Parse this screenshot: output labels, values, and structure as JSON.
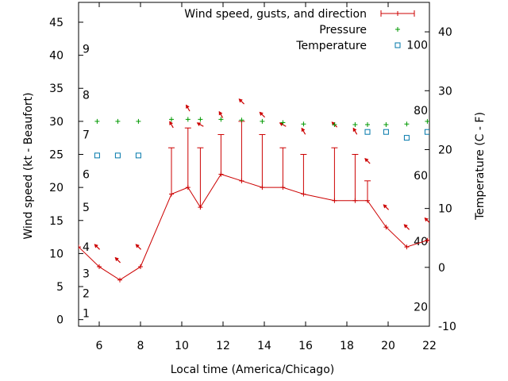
{
  "chart_data": {
    "type": "line",
    "xlabel": "Local time (America/Chicago)",
    "ylabel": "Wind speed (kt - Beaufort)",
    "y2label": "Temperature (C - F)",
    "xlim": [
      5,
      22
    ],
    "ylim": [
      -1,
      48
    ],
    "y2lim": [
      -10,
      45
    ],
    "x_ticks": [
      6,
      8,
      10,
      12,
      14,
      16,
      18,
      20,
      22
    ],
    "y_ticks": [
      0,
      5,
      10,
      15,
      20,
      25,
      30,
      35,
      40,
      45
    ],
    "y2_ticks": [
      -10,
      0,
      10,
      20,
      30,
      40
    ],
    "beaufort_labels": [
      {
        "text": "1",
        "y": 1
      },
      {
        "text": "2",
        "y": 4
      },
      {
        "text": "3",
        "y": 7
      },
      {
        "text": "4",
        "y": 11
      },
      {
        "text": "5",
        "y": 17
      },
      {
        "text": "6",
        "y": 22
      },
      {
        "text": "7",
        "y": 28
      },
      {
        "text": "8",
        "y": 34
      },
      {
        "text": "9",
        "y": 41
      }
    ],
    "fahrenheit_labels": [
      {
        "text": "20",
        "y2": -6.7
      },
      {
        "text": "40",
        "y2": 4.4
      },
      {
        "text": "60",
        "y2": 15.6
      },
      {
        "text": "80",
        "y2": 26.7
      },
      {
        "text": "100",
        "y2": 37.8
      }
    ],
    "legend": [
      {
        "label": "Wind speed, gusts, and direction",
        "marker": "line-plus"
      },
      {
        "label": "Pressure",
        "marker": "plus"
      },
      {
        "label": "Temperature",
        "marker": "square"
      }
    ],
    "legend_position": "top-right",
    "colors": {
      "wind": "#cc0000",
      "pressure": "#009900",
      "temperature": "#0077aa",
      "axis": "#000000"
    },
    "wind": {
      "x": [
        5,
        6,
        7,
        8,
        9.5,
        10.3,
        10.9,
        11.9,
        12.9,
        13.9,
        14.9,
        15.9,
        17.4,
        18.4,
        19,
        19.9,
        20.9,
        21.9,
        22
      ],
      "speed": [
        11,
        8,
        6,
        8,
        19,
        20,
        17,
        22,
        21,
        20,
        20,
        19,
        18,
        18,
        18,
        14,
        11,
        12,
        12
      ],
      "gust": [
        null,
        null,
        null,
        null,
        26,
        29,
        26,
        28,
        30,
        28,
        26,
        25,
        26,
        25,
        21,
        null,
        null,
        null,
        null
      ]
    },
    "wind_arrows": {
      "x": [
        5.9,
        6.9,
        7.9,
        9.5,
        10.3,
        10.9,
        11.9,
        12.9,
        13.9,
        14.9,
        15.9,
        17.4,
        18.4,
        19,
        19.9,
        20.9,
        21.9
      ],
      "y": [
        11,
        9,
        11,
        29.5,
        32,
        29.5,
        31,
        33,
        31,
        29.5,
        28.5,
        29.5,
        28.5,
        24,
        17,
        14,
        15
      ],
      "angle_deg": [
        315,
        315,
        315,
        300,
        300,
        330,
        300,
        315,
        315,
        330,
        300,
        315,
        300,
        315,
        315,
        315,
        315
      ]
    },
    "pressure": {
      "x": [
        5.9,
        6.9,
        7.9,
        9.5,
        10.3,
        10.9,
        11.9,
        12.9,
        13.9,
        14.9,
        15.9,
        17.4,
        18.4,
        19,
        19.9,
        20.9,
        21.9
      ],
      "y": [
        30,
        30,
        30,
        30.3,
        30.3,
        30.3,
        30.3,
        30.2,
        30,
        29.8,
        29.6,
        29.5,
        29.5,
        29.5,
        29.5,
        29.6,
        30
      ]
    },
    "temperature": {
      "x": [
        5.9,
        6.9,
        7.9,
        19,
        19.9,
        20.9,
        21.9
      ],
      "y2": [
        19,
        19,
        19,
        23,
        23,
        22,
        23
      ]
    }
  }
}
